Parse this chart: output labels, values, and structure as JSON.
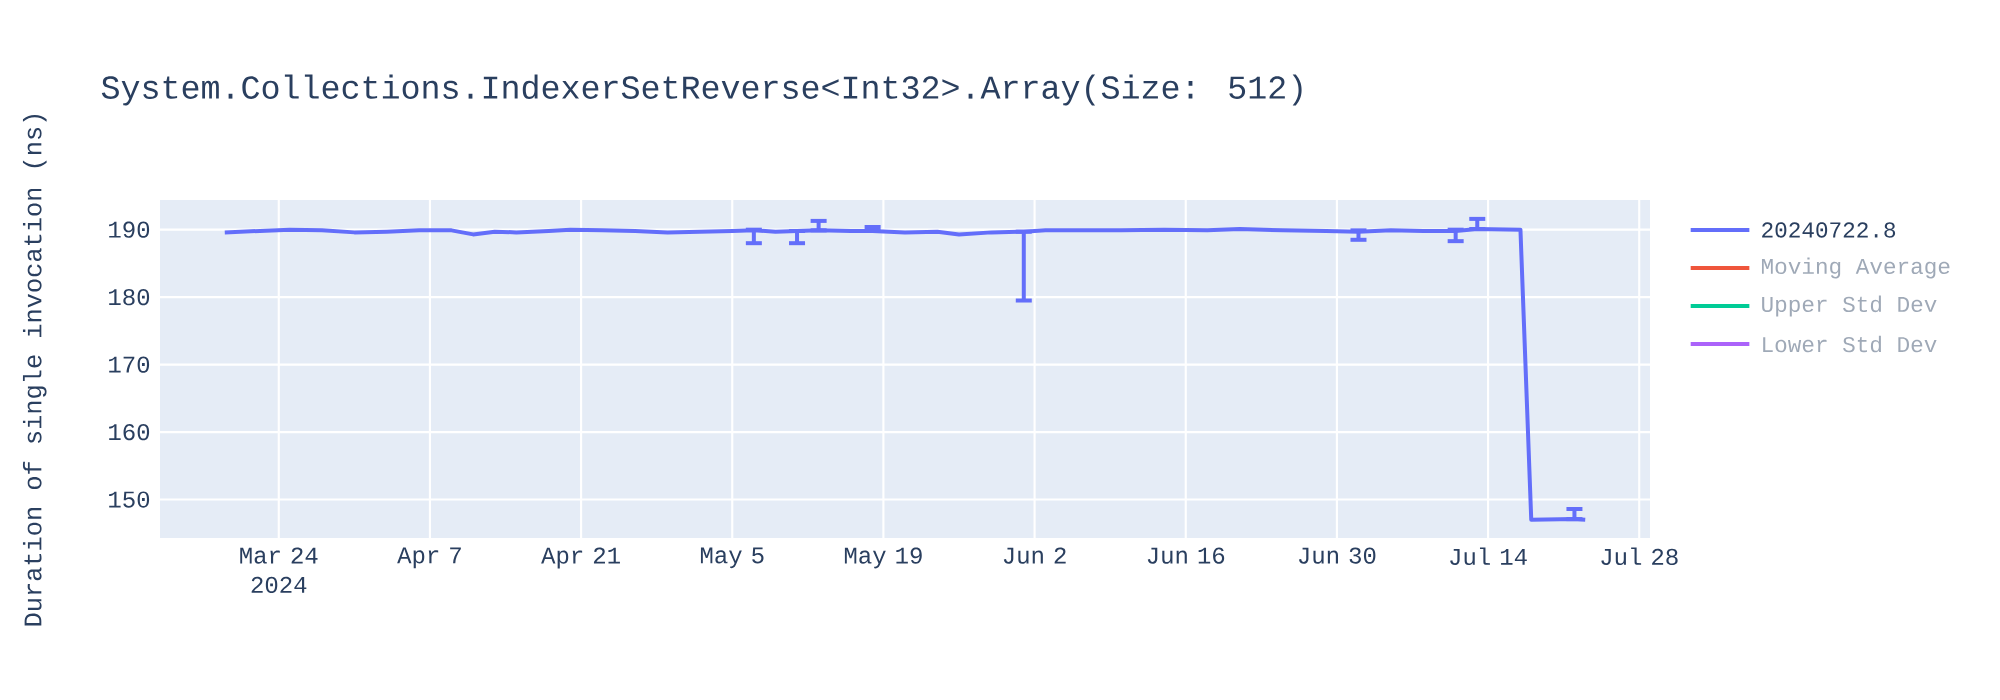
{
  "chart_data": {
    "type": "line",
    "title": "System.Collections.IndexerSetReverse<Int32>.Array(Size: 512)",
    "ylabel": "Duration of single invocation (ns)",
    "x": [
      "2024-03-19",
      "2024-03-22",
      "2024-03-25",
      "2024-03-28",
      "2024-03-31",
      "2024-04-03",
      "2024-04-06",
      "2024-04-09",
      "2024-04-11",
      "2024-04-13",
      "2024-04-15",
      "2024-04-18",
      "2024-04-20",
      "2024-04-23",
      "2024-04-26",
      "2024-04-29",
      "2024-05-02",
      "2024-05-05",
      "2024-05-07",
      "2024-05-09",
      "2024-05-11",
      "2024-05-13",
      "2024-05-16",
      "2024-05-18",
      "2024-05-21",
      "2024-05-24",
      "2024-05-26",
      "2024-05-29",
      "2024-06-01",
      "2024-06-03",
      "2024-06-06",
      "2024-06-10",
      "2024-06-14",
      "2024-06-18",
      "2024-06-21",
      "2024-06-25",
      "2024-06-29",
      "2024-07-02",
      "2024-07-05",
      "2024-07-08",
      "2024-07-11",
      "2024-07-13",
      "2024-07-17",
      "2024-07-18",
      "2024-07-22",
      "2024-07-23"
    ],
    "series": [
      {
        "name": "20240722.8",
        "color": "#636efa",
        "values": [
          189.6,
          189.8,
          190.0,
          189.9,
          189.6,
          189.7,
          189.9,
          189.9,
          189.3,
          189.7,
          189.6,
          189.8,
          190.0,
          189.9,
          189.8,
          189.6,
          189.7,
          189.8,
          189.9,
          189.7,
          189.8,
          189.9,
          189.8,
          189.8,
          189.6,
          189.7,
          189.3,
          189.6,
          189.7,
          189.9,
          189.9,
          189.9,
          190.0,
          189.9,
          190.1,
          189.9,
          189.8,
          189.7,
          189.9,
          189.8,
          189.8,
          190.1,
          190.0,
          147.0,
          147.1,
          147.0
        ],
        "errors": [
          null,
          null,
          null,
          null,
          null,
          null,
          null,
          null,
          null,
          null,
          null,
          null,
          null,
          null,
          null,
          null,
          null,
          null,
          [
            188.0,
            190.0
          ],
          null,
          [
            188.0,
            189.8
          ],
          [
            189.9,
            191.3
          ],
          null,
          [
            189.8,
            190.4
          ],
          null,
          null,
          null,
          null,
          [
            179.5,
            189.7
          ],
          null,
          null,
          null,
          null,
          null,
          null,
          null,
          null,
          [
            188.5,
            189.9
          ],
          null,
          null,
          [
            188.3,
            190.0
          ],
          [
            190.1,
            191.6
          ],
          null,
          null,
          [
            147.1,
            148.6
          ],
          null
        ]
      },
      {
        "name": "Moving Average",
        "color": "#ef553b",
        "values": [
          null,
          null,
          null,
          null,
          null,
          null,
          null,
          null,
          null,
          null,
          null,
          null,
          null,
          null,
          null,
          null,
          null,
          null,
          null,
          null,
          null,
          null,
          null,
          null,
          null,
          null,
          null,
          null,
          null,
          null,
          null,
          null,
          null,
          null,
          null,
          null,
          null,
          null,
          null,
          null,
          null,
          null,
          null,
          null,
          null,
          null
        ]
      },
      {
        "name": "Upper Std Dev",
        "color": "#00cc96",
        "values": [
          null,
          null,
          null,
          null,
          null,
          null,
          null,
          null,
          null,
          null,
          null,
          null,
          null,
          null,
          null,
          null,
          null,
          null,
          null,
          null,
          null,
          null,
          null,
          null,
          null,
          null,
          null,
          null,
          null,
          null,
          null,
          null,
          null,
          null,
          null,
          null,
          null,
          null,
          null,
          null,
          null,
          null,
          null,
          null,
          null,
          null
        ]
      },
      {
        "name": "Lower Std Dev",
        "color": "#ab63fa",
        "values": [
          null,
          null,
          null,
          null,
          null,
          null,
          null,
          null,
          null,
          null,
          null,
          null,
          null,
          null,
          null,
          null,
          null,
          null,
          null,
          null,
          null,
          null,
          null,
          null,
          null,
          null,
          null,
          null,
          null,
          null,
          null,
          null,
          null,
          null,
          null,
          null,
          null,
          null,
          null,
          null,
          null,
          null,
          null,
          null,
          null,
          null
        ]
      }
    ],
    "xlim": [
      "2024-03-13",
      "2024-07-29"
    ],
    "ylim": [
      144.3,
      194.4
    ],
    "xticks": [
      {
        "value": "2024-03-24",
        "label": "Mar 24 2024"
      },
      {
        "value": "2024-04-07",
        "label": "Apr 7"
      },
      {
        "value": "2024-04-21",
        "label": "Apr 21"
      },
      {
        "value": "2024-05-05",
        "label": "May 5"
      },
      {
        "value": "2024-05-19",
        "label": "May 19"
      },
      {
        "value": "2024-06-02",
        "label": "Jun 2"
      },
      {
        "value": "2024-06-16",
        "label": "Jun 16"
      },
      {
        "value": "2024-06-30",
        "label": "Jun 30"
      },
      {
        "value": "2024-07-14",
        "label": "Jul 14"
      },
      {
        "value": "2024-07-28",
        "label": "Jul 28"
      }
    ],
    "yticks": [
      150,
      160,
      170,
      180,
      190
    ],
    "grid": true,
    "legend": "top right",
    "marker": "none",
    "line_style": "solid"
  }
}
